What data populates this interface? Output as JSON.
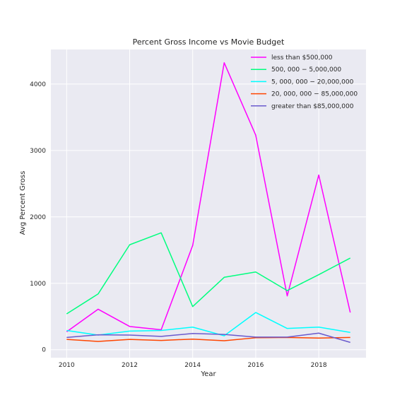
{
  "chart_data": {
    "type": "line",
    "title": "Percent Gross Income vs Movie Budget",
    "xlabel": "Year",
    "ylabel": "Avg Percent Gross",
    "x": [
      2010,
      2011,
      2012,
      2013,
      2014,
      2015,
      2016,
      2017,
      2018,
      2019
    ],
    "xlim": [
      2009.5,
      2019.5
    ],
    "ylim": [
      -120,
      4520
    ],
    "xticks": [
      "2010",
      "2012",
      "2014",
      "2016",
      "2018"
    ],
    "yticks": [
      "0",
      "1000",
      "2000",
      "3000",
      "4000"
    ],
    "grid": true,
    "legend_position": "top-right",
    "series": [
      {
        "name": "less than $500,000",
        "color": "#ff00ff",
        "values": [
          270,
          610,
          350,
          300,
          1570,
          4320,
          3230,
          810,
          2630,
          560
        ]
      },
      {
        "name": "500, 000 − 5,000,000",
        "color": "#00ff7f",
        "values": [
          540,
          840,
          1580,
          1760,
          650,
          1090,
          1170,
          890,
          1130,
          1380
        ]
      },
      {
        "name": "5, 000, 000 − 20,000,000",
        "color": "#00ffff",
        "values": [
          290,
          220,
          280,
          290,
          340,
          210,
          560,
          320,
          340,
          260
        ]
      },
      {
        "name": "20, 000, 000 − 85,000,000",
        "color": "#ff4500",
        "values": [
          155,
          125,
          155,
          140,
          160,
          135,
          180,
          185,
          175,
          185
        ]
      },
      {
        "name": "greater than $85,000,000",
        "color": "#6a5acd",
        "values": [
          185,
          225,
          220,
          200,
          245,
          230,
          190,
          190,
          250,
          110
        ]
      }
    ]
  }
}
